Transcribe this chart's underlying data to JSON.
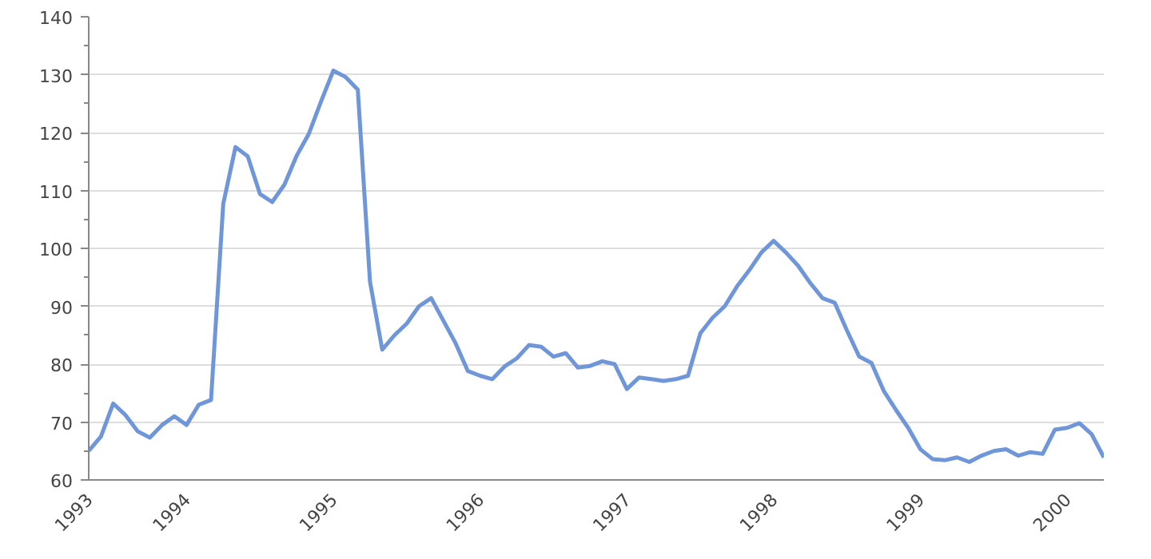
{
  "chart_data": {
    "type": "line",
    "x": [
      "1993-05",
      "1993-06",
      "1993-07",
      "1993-08",
      "1993-09",
      "1993-10",
      "1993-11",
      "1993-12",
      "1994-01",
      "1994-02",
      "1994-03",
      "1994-04",
      "1994-05",
      "1994-06",
      "1994-07",
      "1994-08",
      "1994-09",
      "1994-10",
      "1994-11",
      "1994-12",
      "1995-01",
      "1995-02",
      "1995-03",
      "1995-04",
      "1995-05",
      "1995-06",
      "1995-07",
      "1995-08",
      "1995-09",
      "1995-10",
      "1995-11",
      "1995-12",
      "1996-01",
      "1996-02",
      "1996-03",
      "1996-04",
      "1996-05",
      "1996-06",
      "1996-07",
      "1996-08",
      "1996-09",
      "1996-10",
      "1996-11",
      "1996-12",
      "1997-01",
      "1997-02",
      "1997-03",
      "1997-04",
      "1997-05",
      "1997-06",
      "1997-07",
      "1997-08",
      "1997-09",
      "1997-10",
      "1997-11",
      "1997-12",
      "1998-01",
      "1998-02",
      "1998-03",
      "1998-04",
      "1998-05",
      "1998-06",
      "1998-07",
      "1998-08",
      "1998-09",
      "1998-10",
      "1998-11",
      "1998-12",
      "1999-01",
      "1999-02",
      "1999-03",
      "1999-04",
      "1999-05",
      "1999-06",
      "1999-07",
      "1999-08",
      "1999-09",
      "1999-10",
      "1999-11",
      "1999-12",
      "2000-01",
      "2000-02",
      "2000-03",
      "2000-04"
    ],
    "series": [
      {
        "color": "#6f96d8",
        "values": [
          65,
          67.5,
          73.2,
          71.2,
          68.4,
          67.3,
          69.5,
          71,
          69.5,
          73,
          73.8,
          107.7,
          117.5,
          115.9,
          109.4,
          108,
          111,
          116,
          119.8,
          125.4,
          130.7,
          129.6,
          127.4,
          94.2,
          82.5,
          85,
          87,
          90,
          91.4,
          87.5,
          83.6,
          78.8,
          78,
          77.4,
          79.6,
          81,
          83.3,
          83,
          81.3,
          81.9,
          79.4,
          79.7,
          80.5,
          80,
          75.7,
          77.7,
          77.4,
          77.1,
          77.4,
          78,
          85.3,
          88,
          90,
          93.4,
          96.2,
          99.3,
          101.3,
          99.3,
          97,
          94,
          91.4,
          90.6,
          85.8,
          81.3,
          80.2,
          75.4,
          72.1,
          69,
          65.3,
          63.6,
          63.4,
          63.9,
          63.1,
          64.2,
          65,
          65.3,
          64.2,
          64.8,
          64.5,
          68.7,
          69,
          69.8,
          67.9,
          63.9
        ]
      }
    ],
    "xlim": [
      "1993-05",
      "2000-04"
    ],
    "xticks": [
      {
        "value": "1993-05",
        "label": "1993"
      },
      {
        "value": "1994-01",
        "label": "1994"
      },
      {
        "value": "1995-01",
        "label": "1995"
      },
      {
        "value": "1996-01",
        "label": "1996"
      },
      {
        "value": "1997-01",
        "label": "1997"
      },
      {
        "value": "1998-01",
        "label": "1998"
      },
      {
        "value": "1999-01",
        "label": "1999"
      },
      {
        "value": "2000-01",
        "label": "2000"
      }
    ],
    "ylim": [
      60,
      140
    ],
    "yticks": [
      60,
      {
        "value": 65,
        "label": null
      },
      70,
      {
        "value": 75,
        "label": null
      },
      80,
      {
        "value": 85,
        "label": null
      },
      90,
      {
        "value": 95,
        "label": null
      },
      100,
      {
        "value": 105,
        "label": null
      },
      110,
      {
        "value": 115,
        "label": null
      },
      120,
      {
        "value": 125,
        "label": null
      },
      130,
      {
        "value": 135,
        "label": null
      },
      140
    ],
    "grid": "y",
    "marker": "none",
    "line_style": "solid"
  }
}
